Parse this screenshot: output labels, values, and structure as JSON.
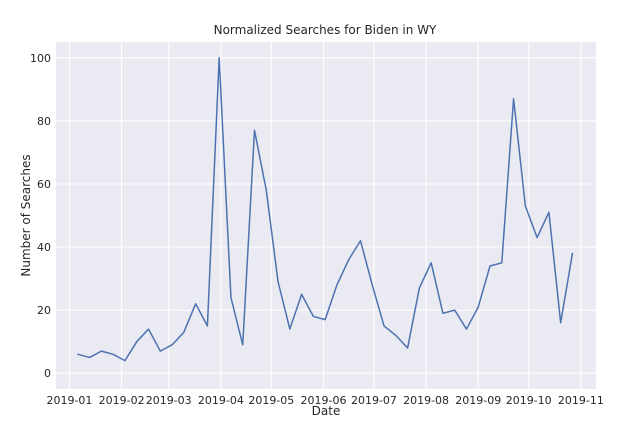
{
  "chart_data": {
    "type": "line",
    "title": "Normalized Searches for Biden in WY",
    "xlabel": "Date",
    "ylabel": "Number of Searches",
    "ylim": [
      0,
      100
    ],
    "yticks": [
      0,
      20,
      40,
      60,
      80,
      100
    ],
    "xlim": [
      "2018-12-24",
      "2019-11-10"
    ],
    "xticks": [
      "2019-01",
      "2019-02",
      "2019-03",
      "2019-04",
      "2019-05",
      "2019-06",
      "2019-07",
      "2019-08",
      "2019-09",
      "2019-10",
      "2019-11"
    ],
    "grid": true,
    "background_color": "#eaeaf2",
    "grid_color": "#ffffff",
    "line_color": "#4c72b0",
    "series": [
      {
        "x": [
          "2019-01-06",
          "2019-01-13",
          "2019-01-20",
          "2019-01-27",
          "2019-02-03",
          "2019-02-10",
          "2019-02-17",
          "2019-02-24",
          "2019-03-03",
          "2019-03-10",
          "2019-03-17",
          "2019-03-24",
          "2019-03-31",
          "2019-04-07",
          "2019-04-14",
          "2019-04-21",
          "2019-04-28",
          "2019-05-05",
          "2019-05-12",
          "2019-05-19",
          "2019-05-26",
          "2019-06-02",
          "2019-06-09",
          "2019-06-16",
          "2019-06-23",
          "2019-06-30",
          "2019-07-07",
          "2019-07-14",
          "2019-07-21",
          "2019-07-28",
          "2019-08-04",
          "2019-08-11",
          "2019-08-18",
          "2019-08-25",
          "2019-09-01",
          "2019-09-08",
          "2019-09-15",
          "2019-09-22",
          "2019-09-29",
          "2019-10-06",
          "2019-10-13",
          "2019-10-20",
          "2019-10-27"
        ],
        "values": [
          6,
          5,
          7,
          6,
          4,
          10,
          14,
          7,
          9,
          13,
          22,
          15,
          100,
          24,
          9,
          77,
          58,
          29,
          14,
          25,
          18,
          17,
          28,
          36,
          42,
          28,
          15,
          12,
          8,
          27,
          35,
          19,
          20,
          14,
          21,
          34,
          35,
          87,
          53,
          43,
          51,
          16,
          38
        ]
      }
    ]
  }
}
